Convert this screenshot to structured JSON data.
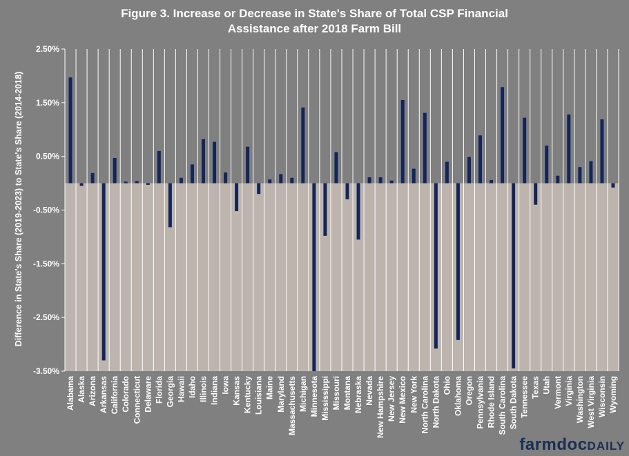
{
  "chart_data": {
    "type": "bar",
    "title_line1": "Figure 3. Increase or Decrease in State's Share of Total CSP Financial",
    "title_line2": "Assistance after 2018 Farm Bill",
    "xlabel": "",
    "ylabel": "Difference in State's Share (2019-2023) to State's Share (2014-2018)",
    "ylim": [
      -3.5,
      2.5
    ],
    "yticks": [
      "2.50%",
      "1.50%",
      "0.50%",
      "-0.50%",
      "-1.50%",
      "-2.50%",
      "-3.50%"
    ],
    "ytick_values": [
      2.5,
      1.5,
      0.5,
      -0.5,
      -1.5,
      -2.5,
      -3.5
    ],
    "grid": "vertical category lines",
    "colors": {
      "bar": "#13255a",
      "plot_bg": "#bdb4ae",
      "page_bg": "#808080",
      "grid": "#ffffff"
    },
    "categories": [
      "Alabama",
      "Alaska",
      "Arizona",
      "Arkansas",
      "California",
      "Colorado",
      "Connecticut",
      "Delaware",
      "Florida",
      "Georgia",
      "Hawaii",
      "Idaho",
      "Illinois",
      "Indiana",
      "Iowa",
      "Kansas",
      "Kentucky",
      "Louisiana",
      "Maine",
      "Maryland",
      "Massachusetts",
      "Michigan",
      "Minnesota",
      "Mississippi",
      "Missouri",
      "Montana",
      "Nebraska",
      "Nevada",
      "New Hampshire",
      "New Jersey",
      "New Mexico",
      "New York",
      "North Carolina",
      "North Dakota",
      "Ohio",
      "Oklahoma",
      "Oregon",
      "Pennsylvania",
      "Rhode Island",
      "South Carolina",
      "South Dakota",
      "Tennessee",
      "Texas",
      "Utah",
      "Vermont",
      "Virginia",
      "Washington",
      "West Virginia",
      "Wisconsin",
      "Wyoming"
    ],
    "values": [
      1.97,
      -0.05,
      0.19,
      -3.3,
      0.47,
      0.03,
      0.04,
      -0.03,
      0.6,
      -0.82,
      0.1,
      0.35,
      0.82,
      0.77,
      0.2,
      -0.52,
      0.68,
      -0.2,
      0.07,
      0.17,
      0.1,
      1.41,
      -3.5,
      -0.98,
      0.58,
      -0.3,
      -1.05,
      0.11,
      0.11,
      0.05,
      1.55,
      0.27,
      1.31,
      -3.08,
      0.4,
      -2.92,
      0.49,
      0.89,
      0.06,
      1.79,
      -3.45,
      1.22,
      -0.4,
      0.7,
      0.14,
      1.28,
      0.3,
      0.41,
      1.19,
      -0.08
    ]
  },
  "brand": {
    "part1": "farmdoc",
    "part2": "DAILY"
  }
}
